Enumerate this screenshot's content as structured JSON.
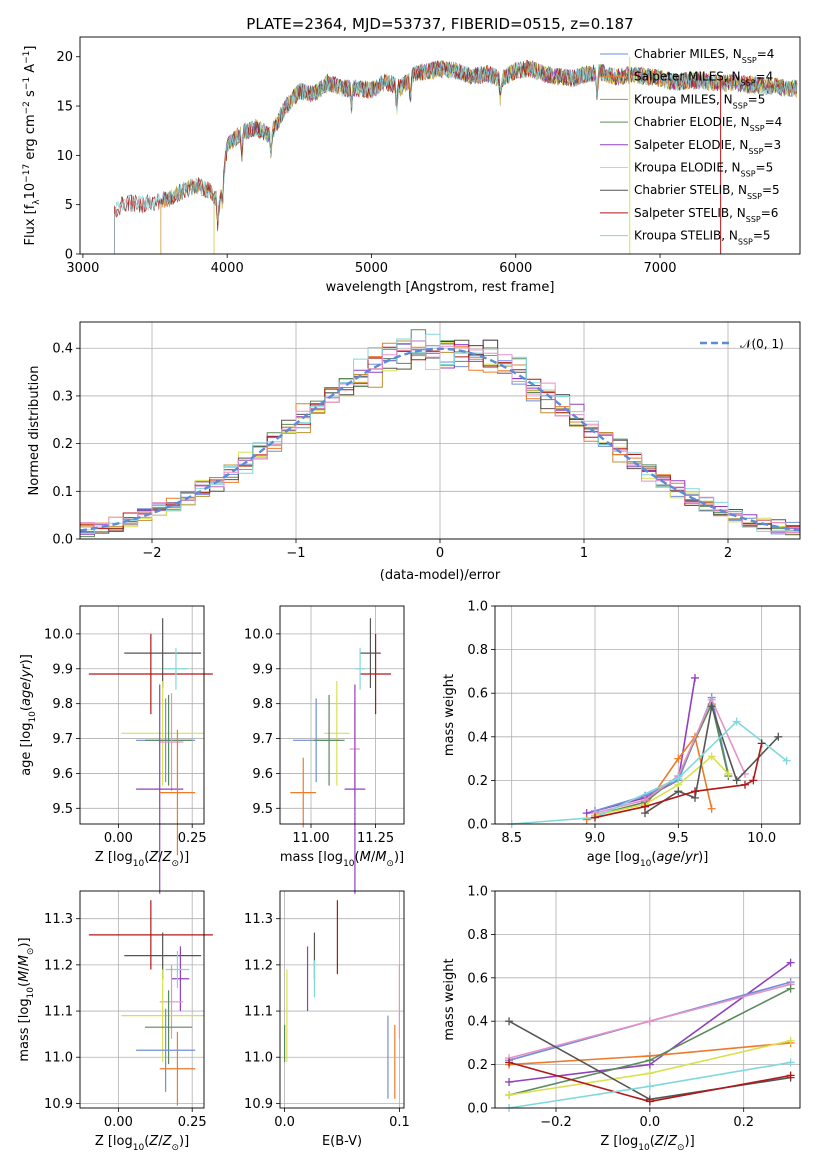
{
  "figure": {
    "title": "PLATE=2364, MJD=53737, FIBERID=0515, z=0.187"
  },
  "colors": {
    "chabrier_miles": "#6f8fd8",
    "salpeter_miles": "#ee7a2a",
    "kroupa_miles": "#c09030",
    "chabrier_elodie": "#5a8a5a",
    "salpeter_elodie": "#9040c0",
    "kroupa_elodie": "#d8e050",
    "chabrier_stelib": "#555555",
    "salpeter_stelib": "#b01818",
    "kroupa_stelib": "#80d8dc",
    "pink": "#e890c8",
    "gauss": "#5b8bd9",
    "grid": "#b0b0b0"
  },
  "chart_data": [
    {
      "id": "spectrum",
      "type": "line",
      "xlabel": "wavelength [Angstrom, rest frame]",
      "ylabel": "Flux [f_λ10^-17 erg cm^-2 s^-1 A^-1]",
      "xlim": [
        2980,
        7970
      ],
      "ylim": [
        0,
        22
      ],
      "xticks": [
        3000,
        4000,
        5000,
        6000,
        7000
      ],
      "yticks": [
        0,
        5,
        10,
        15,
        20
      ],
      "grid": false,
      "legend_position": "right",
      "legend": [
        {
          "key": "chabrier_miles",
          "label": "Chabrier MILES, N",
          "sub": "SSP",
          "suffix": "=4"
        },
        {
          "key": "salpeter_miles",
          "label": "Salpeter MILES, N",
          "sub": "SSP",
          "suffix": "=4"
        },
        {
          "key": "kroupa_miles",
          "label": "Kroupa MILES, N",
          "sub": "SSP",
          "suffix": "=5"
        },
        {
          "key": "chabrier_elodie",
          "label": "Chabrier ELODIE, N",
          "sub": "SSP",
          "suffix": "=4"
        },
        {
          "key": "salpeter_elodie",
          "label": "Salpeter ELODIE, N",
          "sub": "SSP",
          "suffix": "=3"
        },
        {
          "key": "kroupa_elodie",
          "label": "Kroupa ELODIE, N",
          "sub": "SSP",
          "suffix": "=5"
        },
        {
          "key": "chabrier_stelib",
          "label": "Chabrier STELIB, N",
          "sub": "SSP",
          "suffix": "=5"
        },
        {
          "key": "salpeter_stelib",
          "label": "Salpeter STELIB, N",
          "sub": "SSP",
          "suffix": "=6"
        },
        {
          "key": "kroupa_stelib",
          "label": "Kroupa STELIB, N",
          "sub": "SSP",
          "suffix": "=5"
        }
      ],
      "x": [
        3200,
        3300,
        3400,
        3500,
        3600,
        3700,
        3800,
        3900,
        3950,
        4000,
        4100,
        4200,
        4300,
        4400,
        4500,
        4600,
        4700,
        4800,
        4900,
        5000,
        5100,
        5200,
        5300,
        5400,
        5500,
        5600,
        5700,
        5800,
        5900,
        6000,
        6100,
        6200,
        6300,
        6400,
        6500,
        6600,
        6700,
        6800,
        6900,
        7000,
        7100,
        7200,
        7300,
        7400,
        7500,
        7600,
        7700,
        7800,
        7900
      ],
      "y": [
        4.2,
        5.2,
        5.0,
        5.3,
        5.6,
        6.5,
        7.0,
        6.2,
        5.0,
        11.0,
        12.3,
        12.8,
        12.0,
        14.8,
        16.5,
        16.2,
        17.4,
        16.8,
        16.8,
        16.6,
        17.5,
        16.8,
        18.2,
        18.6,
        18.8,
        18.5,
        18.0,
        18.3,
        17.7,
        18.6,
        18.8,
        18.2,
        18.0,
        17.8,
        18.3,
        18.4,
        17.9,
        18.2,
        18.0,
        17.8,
        17.4,
        17.6,
        17.5,
        17.3,
        17.4,
        17.2,
        17.1,
        17.0,
        16.8
      ],
      "model_starts": [
        {
          "key": "chabrier_miles",
          "x": 3540
        },
        {
          "key": "salpeter_miles",
          "x": 3540
        },
        {
          "key": "kroupa_miles",
          "x": 3540
        },
        {
          "key": "chabrier_elodie",
          "x": 3910
        },
        {
          "key": "salpeter_elodie",
          "x": 3910
        },
        {
          "key": "kroupa_elodie",
          "x": 3910
        },
        {
          "key": "chabrier_stelib",
          "x": 3220
        },
        {
          "key": "salpeter_stelib",
          "x": 3220
        },
        {
          "key": "kroupa_stelib",
          "x": 3220
        }
      ]
    },
    {
      "id": "residuals",
      "type": "line",
      "xlabel": "(data-model)/error",
      "ylabel": "Normed distribution",
      "xlim": [
        -2.5,
        2.5
      ],
      "ylim": [
        0,
        0.455
      ],
      "xticks": [
        -2,
        -1,
        0,
        1,
        2
      ],
      "yticks": [
        0.0,
        0.1,
        0.2,
        0.3,
        0.4
      ],
      "grid": true,
      "legend_position": "top-right",
      "legend": [
        {
          "key": "gauss",
          "label": "𝒩(0, 1)"
        }
      ],
      "bin_width": 0.1
    },
    {
      "id": "age_vs_Z",
      "type": "scatter",
      "xlabel": "Z [log10(Z/Z⊙)]",
      "ylabel": "age  [log10(age/yr)]",
      "xlim": [
        -0.13,
        0.29
      ],
      "ylim": [
        9.455,
        10.08
      ],
      "xticks": [
        0.0,
        0.25
      ],
      "yticks": [
        9.5,
        9.6,
        9.7,
        9.8,
        9.9,
        10.0
      ],
      "grid": true,
      "points": [
        {
          "key": "chabrier_stelib",
          "x": 0.15,
          "xerr": 0.13,
          "y": 9.945,
          "yerr": 0.1
        },
        {
          "key": "salpeter_stelib",
          "x": 0.11,
          "xerr": 0.21,
          "y": 9.885,
          "yerr": 0.115
        },
        {
          "key": "kroupa_stelib",
          "x": 0.195,
          "xerr": 0.04,
          "y": 9.9,
          "yerr": 0.06
        },
        {
          "key": "kroupa_elodie",
          "x": 0.15,
          "xerr": 0.14,
          "y": 9.715,
          "yerr": 0.15
        },
        {
          "key": "chabrier_miles",
          "x": 0.16,
          "xerr": 0.1,
          "y": 9.695,
          "yerr": 0.12
        },
        {
          "key": "chabrier_elodie",
          "x": 0.17,
          "xerr": 0.08,
          "y": 9.695,
          "yerr": 0.13
        },
        {
          "key": "pink",
          "x": 0.18,
          "xerr": 0.04,
          "y": 9.69,
          "yerr": 0.14
        },
        {
          "key": "salpeter_elodie",
          "x": 0.14,
          "xerr": 0.08,
          "y": 9.555,
          "yerr": 0.3
        },
        {
          "key": "salpeter_miles",
          "x": 0.2,
          "xerr": 0.06,
          "y": 9.545,
          "yerr": 0.18
        }
      ]
    },
    {
      "id": "age_vs_mass",
      "type": "scatter",
      "xlabel": "mass [log10(M/M⊙)]",
      "ylabel": "",
      "xlim": [
        10.88,
        11.36
      ],
      "ylim": [
        9.455,
        10.08
      ],
      "xticks": [
        11.0,
        11.25
      ],
      "yticks": [
        9.5,
        9.6,
        9.7,
        9.8,
        9.9,
        10.0
      ],
      "grid": true,
      "points": [
        {
          "key": "chabrier_stelib",
          "x": 11.23,
          "xerr": 0.04,
          "y": 9.945,
          "yerr": 0.1
        },
        {
          "key": "salpeter_stelib",
          "x": 11.25,
          "xerr": 0.06,
          "y": 9.885,
          "yerr": 0.115
        },
        {
          "key": "kroupa_stelib",
          "x": 11.19,
          "xerr": 0.02,
          "y": 9.9,
          "yerr": 0.06
        },
        {
          "key": "kroupa_elodie",
          "x": 11.1,
          "xerr": 0.05,
          "y": 9.715,
          "yerr": 0.15
        },
        {
          "key": "chabrier_miles",
          "x": 11.02,
          "xerr": 0.09,
          "y": 9.695,
          "yerr": 0.12
        },
        {
          "key": "chabrier_elodie",
          "x": 11.07,
          "xerr": 0.06,
          "y": 9.695,
          "yerr": 0.13
        },
        {
          "key": "pink",
          "x": 11.17,
          "xerr": 0.02,
          "y": 9.67,
          "yerr": 0.14
        },
        {
          "key": "salpeter_elodie",
          "x": 11.17,
          "xerr": 0.04,
          "y": 9.555,
          "yerr": 0.3
        },
        {
          "key": "salpeter_miles",
          "x": 10.97,
          "xerr": 0.05,
          "y": 9.545,
          "yerr": 0.1
        }
      ]
    },
    {
      "id": "weight_vs_age",
      "type": "line",
      "xlabel": "age  [log10(age/yr)]",
      "ylabel": "mass weight",
      "xlim": [
        8.4,
        10.23
      ],
      "ylim": [
        0,
        1.0
      ],
      "xticks": [
        8.5,
        9.0,
        9.5,
        10.0
      ],
      "yticks": [
        0.0,
        0.2,
        0.4,
        0.6,
        0.8,
        1.0
      ],
      "grid": true,
      "series": [
        {
          "key": "salpeter_elodie",
          "x": [
            8.95,
            9.3,
            9.5,
            9.6
          ],
          "y": [
            0.05,
            0.12,
            0.2,
            0.67
          ]
        },
        {
          "key": "salpeter_miles",
          "x": [
            8.95,
            9.3,
            9.5,
            9.6,
            9.7
          ],
          "y": [
            0.02,
            0.08,
            0.3,
            0.4,
            0.07
          ]
        },
        {
          "key": "chabrier_miles",
          "x": [
            9.0,
            9.3,
            9.5,
            9.7,
            9.8
          ],
          "y": [
            0.06,
            0.13,
            0.2,
            0.58,
            0.23
          ]
        },
        {
          "key": "chabrier_elodie",
          "x": [
            9.0,
            9.3,
            9.5,
            9.7,
            9.8
          ],
          "y": [
            0.04,
            0.1,
            0.22,
            0.55,
            0.22
          ]
        },
        {
          "key": "kroupa_elodie",
          "x": [
            9.0,
            9.3,
            9.5,
            9.7,
            9.8
          ],
          "y": [
            0.04,
            0.09,
            0.18,
            0.31,
            0.23
          ]
        },
        {
          "key": "pink",
          "x": [
            9.0,
            9.3,
            9.5,
            9.7,
            9.9
          ],
          "y": [
            0.05,
            0.11,
            0.22,
            0.57,
            0.23
          ]
        },
        {
          "key": "chabrier_stelib",
          "x": [
            9.3,
            9.5,
            9.6,
            9.7,
            9.85,
            10.1
          ],
          "y": [
            0.05,
            0.15,
            0.12,
            0.54,
            0.2,
            0.4
          ]
        },
        {
          "key": "kroupa_stelib",
          "x": [
            8.5,
            9.0,
            9.5,
            9.85,
            10.15
          ],
          "y": [
            0.0,
            0.03,
            0.21,
            0.47,
            0.29
          ]
        },
        {
          "key": "salpeter_stelib",
          "x": [
            9.0,
            9.3,
            9.6,
            9.9,
            9.95,
            10.0
          ],
          "y": [
            0.03,
            0.08,
            0.15,
            0.18,
            0.2,
            0.37
          ]
        }
      ]
    },
    {
      "id": "mass_vs_Z",
      "type": "scatter",
      "xlabel": "Z [log10(Z/Z⊙)]",
      "ylabel": "mass [log10(M/M⊙)]",
      "xlim": [
        -0.13,
        0.29
      ],
      "ylim": [
        10.89,
        11.36
      ],
      "xticks": [
        0.0,
        0.25
      ],
      "yticks": [
        10.9,
        11.0,
        11.1,
        11.2,
        11.3
      ],
      "grid": true,
      "points": [
        {
          "key": "salpeter_stelib",
          "x": 0.11,
          "xerr": 0.21,
          "y": 11.265,
          "yerr": 0.075
        },
        {
          "key": "chabrier_stelib",
          "x": 0.15,
          "xerr": 0.13,
          "y": 11.22,
          "yerr": 0.05
        },
        {
          "key": "salpeter_elodie",
          "x": 0.21,
          "xerr": 0.03,
          "y": 11.17,
          "yerr": 0.07
        },
        {
          "key": "kroupa_stelib",
          "x": 0.2,
          "xerr": 0.04,
          "y": 11.19,
          "yerr": 0.04
        },
        {
          "key": "pink",
          "x": 0.18,
          "xerr": 0.04,
          "y": 11.12,
          "yerr": 0.08
        },
        {
          "key": "kroupa_elodie",
          "x": 0.15,
          "xerr": 0.14,
          "y": 11.09,
          "yerr": 0.1
        },
        {
          "key": "chabrier_elodie",
          "x": 0.17,
          "xerr": 0.08,
          "y": 11.065,
          "yerr": 0.08
        },
        {
          "key": "chabrier_miles",
          "x": 0.16,
          "xerr": 0.1,
          "y": 11.015,
          "yerr": 0.09
        },
        {
          "key": "salpeter_miles",
          "x": 0.2,
          "xerr": 0.06,
          "y": 10.975,
          "yerr": 0.08
        }
      ]
    },
    {
      "id": "mass_vs_EBV",
      "type": "scatter",
      "xlabel": "E(B-V)",
      "ylabel": "",
      "xlim": [
        -0.004,
        0.104
      ],
      "ylim": [
        10.89,
        11.36
      ],
      "xticks": [
        0.0,
        0.1
      ],
      "yticks": [
        10.9,
        11.0,
        11.1,
        11.2,
        11.3
      ],
      "grid": true,
      "points": [
        {
          "key": "salpeter_stelib",
          "x": 0.046,
          "xerr": 0.0,
          "y": 11.26,
          "yerr": 0.08
        },
        {
          "key": "chabrier_stelib",
          "x": 0.026,
          "xerr": 0.0,
          "y": 11.22,
          "yerr": 0.05
        },
        {
          "key": "kroupa_stelib",
          "x": 0.026,
          "xerr": 0.0,
          "y": 11.17,
          "yerr": 0.04
        },
        {
          "key": "salpeter_elodie",
          "x": 0.02,
          "xerr": 0.0,
          "y": 11.17,
          "yerr": 0.07
        },
        {
          "key": "kroupa_elodie",
          "x": 0.002,
          "xerr": 0.0,
          "y": 11.09,
          "yerr": 0.1
        },
        {
          "key": "chabrier_elodie",
          "x": 0.0,
          "xerr": 0.0,
          "y": 11.03,
          "yerr": 0.04
        },
        {
          "key": "pink",
          "x": 0.1,
          "xerr": 0.0,
          "y": 11.12,
          "yerr": 0.08
        },
        {
          "key": "chabrier_miles",
          "x": 0.09,
          "xerr": 0.0,
          "y": 11.0,
          "yerr": 0.09
        },
        {
          "key": "salpeter_miles",
          "x": 0.096,
          "xerr": 0.0,
          "y": 10.99,
          "yerr": 0.08
        }
      ]
    },
    {
      "id": "weight_vs_Z",
      "type": "line",
      "xlabel": "Z [log10(Z/Z⊙)]",
      "ylabel": "mass weight",
      "xlim": [
        -0.33,
        0.32
      ],
      "ylim": [
        0,
        1.0
      ],
      "xticks": [
        -0.2,
        0.0,
        0.2
      ],
      "yticks": [
        0.0,
        0.2,
        0.4,
        0.6,
        0.8,
        1.0
      ],
      "grid": true,
      "series": [
        {
          "key": "salpeter_elodie",
          "x": [
            -0.3,
            0.0,
            0.3
          ],
          "y": [
            0.12,
            0.2,
            0.67
          ]
        },
        {
          "key": "salpeter_miles",
          "x": [
            -0.3,
            0.0,
            0.3
          ],
          "y": [
            0.2,
            0.24,
            0.3
          ]
        },
        {
          "key": "chabrier_miles",
          "x": [
            -0.3,
            0.0,
            0.3
          ],
          "y": [
            0.22,
            0.4,
            0.58
          ]
        },
        {
          "key": "pink",
          "x": [
            -0.3,
            0.0,
            0.3
          ],
          "y": [
            0.23,
            0.4,
            0.57
          ]
        },
        {
          "key": "chabrier_elodie",
          "x": [
            -0.3,
            0.0,
            0.3
          ],
          "y": [
            0.06,
            0.22,
            0.55
          ]
        },
        {
          "key": "kroupa_elodie",
          "x": [
            -0.3,
            0.0,
            0.3
          ],
          "y": [
            0.06,
            0.16,
            0.31
          ]
        },
        {
          "key": "chabrier_stelib",
          "x": [
            -0.3,
            0.0,
            0.3
          ],
          "y": [
            0.4,
            0.04,
            0.14
          ]
        },
        {
          "key": "salpeter_stelib",
          "x": [
            -0.3,
            0.0,
            0.3
          ],
          "y": [
            0.21,
            0.03,
            0.15
          ]
        },
        {
          "key": "kroupa_stelib",
          "x": [
            -0.3,
            0.0,
            0.3
          ],
          "y": [
            0.0,
            0.1,
            0.21
          ]
        }
      ]
    }
  ]
}
